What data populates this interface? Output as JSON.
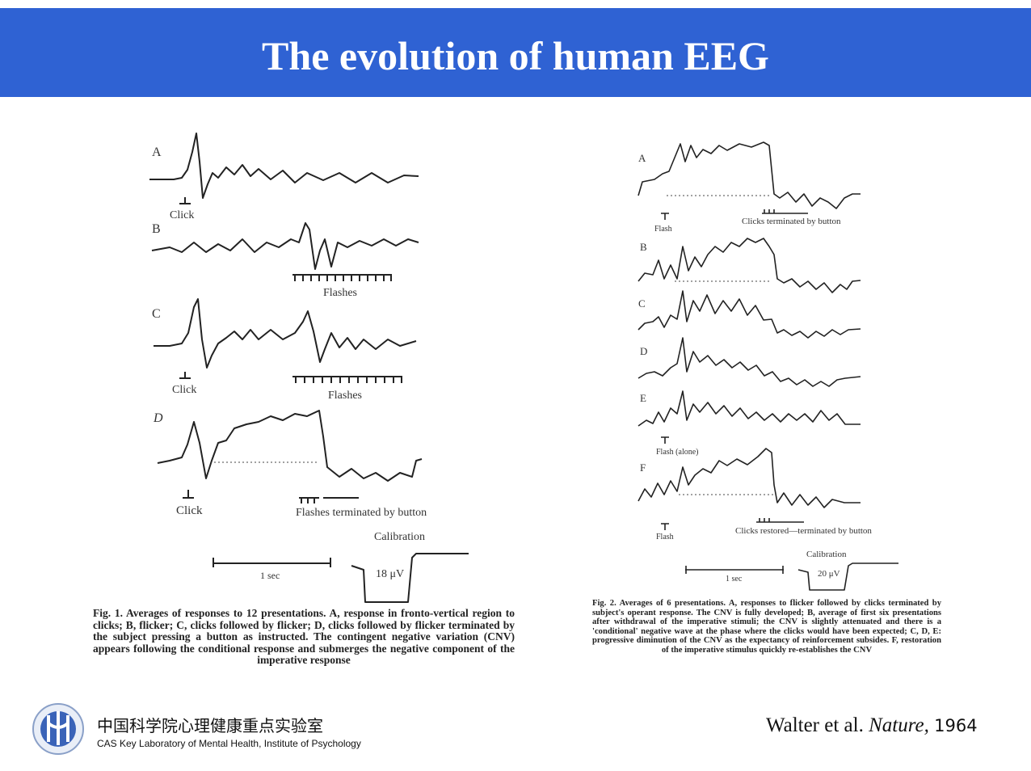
{
  "header": {
    "title": "The evolution of human EEG"
  },
  "figure1": {
    "panels": [
      {
        "label": "A",
        "annotations": [
          "Click"
        ]
      },
      {
        "label": "B",
        "annotations": [
          "Flashes"
        ]
      },
      {
        "label": "C",
        "annotations": [
          "Click",
          "Flashes"
        ]
      },
      {
        "label": "D",
        "annotations": [
          "Click",
          "Flashes terminated by button"
        ]
      }
    ],
    "calibration": {
      "title": "Calibration",
      "time": "1 sec",
      "amplitude": "18 μV"
    },
    "caption": "Fig. 1. Averages of responses to 12 presentations. A, response in fronto-vertical region to clicks; B, flicker; C, clicks followed by flicker; D, clicks followed by flicker terminated by the subject pressing a button as instructed. The contingent negative variation (CNV) appears following the conditional response and submerges the negative component of the imperative response"
  },
  "figure2": {
    "panels": [
      {
        "label": "A",
        "annotations": [
          "Flash",
          "Clicks terminated by button"
        ]
      },
      {
        "label": "B",
        "annotations": []
      },
      {
        "label": "C",
        "annotations": []
      },
      {
        "label": "D",
        "annotations": []
      },
      {
        "label": "E",
        "annotations": [
          "Flash (alone)"
        ]
      },
      {
        "label": "F",
        "annotations": [
          "Flash",
          "Clicks restored—terminated by button"
        ]
      }
    ],
    "calibration": {
      "title": "Calibration",
      "time": "1 sec",
      "amplitude": "20 μV"
    },
    "caption": "Fig. 2. Averages of 6 presentations. A, responses to flicker followed by clicks terminated by subject's operant response. The CNV is fully developed; B, average of first six presentations after withdrawal of the imperative stimuli; the CNV is slightly attenuated and there is a 'conditional' negative wave at the phase where the clicks would have been expected; C, D, E: progressive diminution of the CNV as the expectancy of reinforcement subsides. F, restoration of the imperative stimulus quickly re-establishes the CNV"
  },
  "footer": {
    "institution_cn": "中国科学院心理健康重点实验室",
    "institution_en": "CAS Key Laboratory of Mental Health, Institute of Psychology",
    "citation_authors": "Walter et al.",
    "citation_journal": "Nature,",
    "citation_year": "1964"
  }
}
